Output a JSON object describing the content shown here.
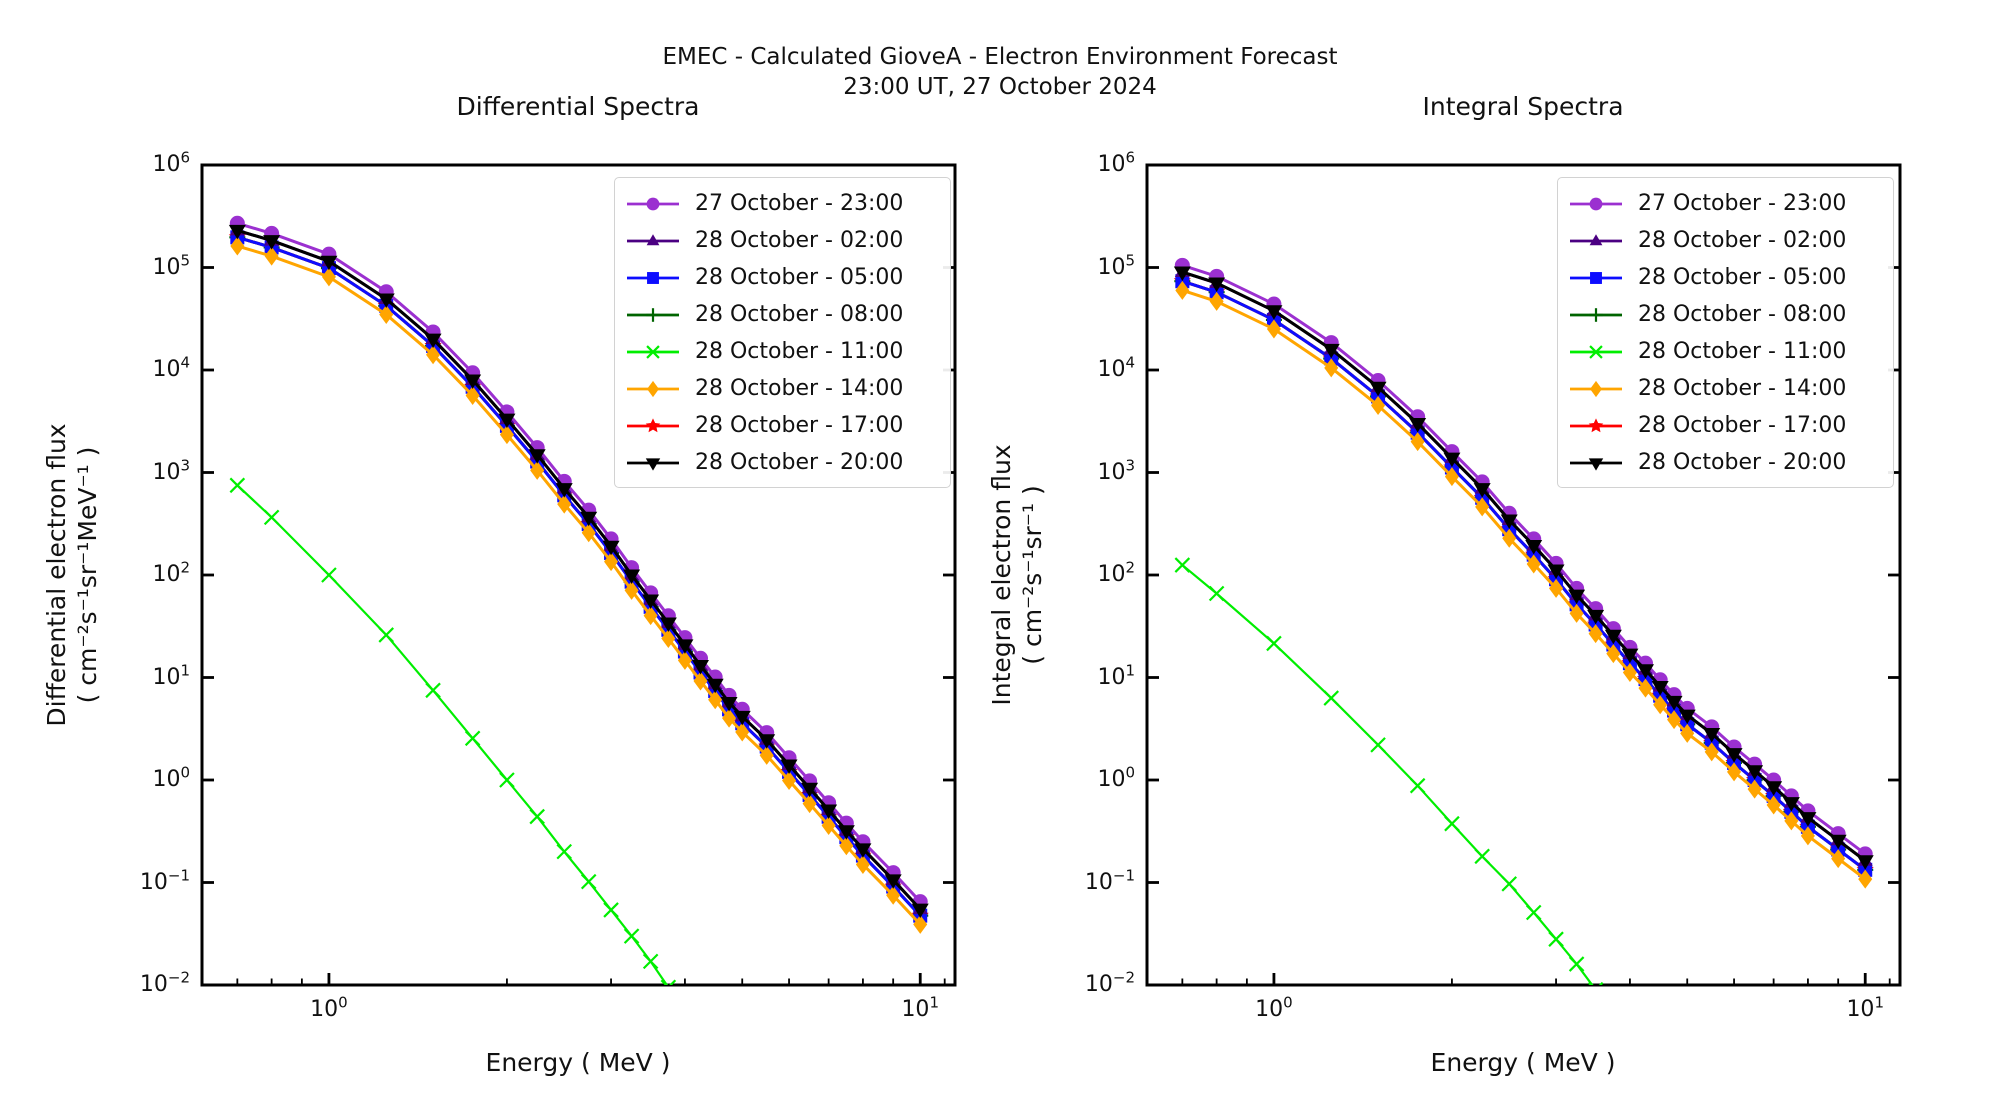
{
  "figure": {
    "title_line1": "EMEC - Calculated GioveA - Electron Environment Forecast",
    "title_line2": "23:00 UT, 27 October 2024",
    "background": "#ffffff"
  },
  "axes": {
    "x_label": "Energy ( MeV )",
    "x_major_exponents": [
      0,
      1
    ],
    "x_minor_values": [
      0.7,
      0.8,
      0.9,
      2,
      3,
      4,
      5,
      6,
      7,
      8,
      9,
      11
    ],
    "y_tick_exponents": [
      6,
      5,
      4,
      3,
      2,
      1,
      0,
      -1,
      -2
    ],
    "grid": "off",
    "legend_position": "upper right"
  },
  "panels": [
    {
      "title": "Differential Spectra",
      "y_label_line1": "Differential electron flux",
      "y_label_line2": "( cm⁻²s⁻¹sr⁻¹MeV⁻¹ )"
    },
    {
      "title": "Integral Spectra",
      "y_label_line1": "Integral electron flux",
      "y_label_line2": "( cm⁻²s⁻¹sr⁻¹ )"
    }
  ],
  "chart_data": [
    {
      "type": "line",
      "title": "Differential Spectra",
      "xlabel": "Energy ( MeV )",
      "ylabel": "Differential electron flux ( cm⁻²s⁻¹sr⁻¹MeV⁻¹ )",
      "x_scale": "log",
      "y_scale": "log",
      "xlim": [
        0.61,
        11.45
      ],
      "ylim": [
        0.01,
        1000000
      ],
      "x": [
        0.7,
        0.8,
        1,
        1.25,
        1.5,
        1.75,
        2,
        2.25,
        2.5,
        2.75,
        3,
        3.25,
        3.5,
        3.75,
        4,
        4.25,
        4.5,
        4.75,
        5,
        5.5,
        6,
        6.5,
        7,
        7.5,
        8,
        9,
        10
      ],
      "series": [
        {
          "name": "27 October - 23:00",
          "color": "#9B30D0",
          "marker": "circle",
          "z": 6,
          "values": [
            270000,
            215000,
            135000,
            58000,
            23500,
            9400,
            3900,
            1750,
            820,
            430,
            225,
            118,
            67,
            40,
            24.5,
            15.4,
            10.1,
            6.7,
            4.9,
            2.9,
            1.65,
            0.98,
            0.6,
            0.38,
            0.25,
            0.125,
            0.065
          ]
        },
        {
          "name": "28 October - 02:00",
          "color": "#4B0082",
          "marker": "triangle-up",
          "z": 3,
          "values": [
            230000,
            183000,
            115000,
            49300,
            20000,
            7990,
            3320,
            1490,
            697,
            366,
            191,
            100,
            57,
            34,
            20.8,
            13.1,
            8.6,
            5.7,
            4.17,
            2.47,
            1.4,
            0.83,
            0.51,
            0.32,
            0.213,
            0.106,
            0.055
          ]
        },
        {
          "name": "28 October - 05:00",
          "color": "#0D0DFF",
          "marker": "square",
          "z": 2,
          "values": [
            197000,
            157000,
            98600,
            42300,
            17200,
            6860,
            2850,
            1280,
            599,
            314,
            164,
            86.1,
            48.9,
            29.2,
            17.9,
            11.2,
            7.37,
            4.89,
            3.58,
            2.12,
            1.2,
            0.715,
            0.438,
            0.277,
            0.183,
            0.0913,
            0.0475
          ]
        },
        {
          "name": "28 October - 08:00",
          "color": "#006400",
          "marker": "plus",
          "z": 0,
          "values": [
            197000,
            157000,
            98600,
            42300,
            17200,
            6860,
            2850,
            1280,
            599,
            314,
            164,
            86.1,
            48.9,
            29.2,
            17.9,
            11.2,
            7.37,
            4.89,
            3.58,
            2.12,
            1.2,
            0.715,
            0.438,
            0.277,
            0.183,
            0.0913,
            0.0475
          ]
        },
        {
          "name": "28 October - 11:00",
          "color": "#00EE00",
          "marker": "x",
          "z": 5,
          "x": [
            0.7,
            0.8,
            1,
            1.25,
            1.5,
            1.75,
            2,
            2.25,
            2.5,
            2.75,
            3,
            3.25,
            3.5,
            3.75
          ],
          "values": [
            750,
            365,
            100,
            26,
            7.5,
            2.55,
            1.0,
            0.44,
            0.2,
            0.102,
            0.054,
            0.03,
            0.017,
            0.0095
          ]
        },
        {
          "name": "28 October - 14:00",
          "color": "#FFA500",
          "marker": "diamond",
          "z": 4,
          "values": [
            162000,
            129000,
            81000,
            34800,
            14100,
            5640,
            2340,
            1050,
            492,
            258,
            135,
            70.8,
            40.2,
            24,
            14.7,
            9.24,
            6.06,
            4.02,
            2.94,
            1.74,
            0.99,
            0.588,
            0.36,
            0.228,
            0.15,
            0.075,
            0.039
          ]
        },
        {
          "name": "28 October - 17:00",
          "color": "#FF0000",
          "marker": "star",
          "z": 1,
          "values": [
            197000,
            157000,
            98600,
            42300,
            17200,
            6860,
            2850,
            1280,
            599,
            314,
            164,
            86.1,
            48.9,
            29.2,
            17.9,
            11.2,
            7.37,
            4.89,
            3.58,
            2.12,
            1.2,
            0.715,
            0.438,
            0.277,
            0.183,
            0.0913,
            0.0475
          ]
        },
        {
          "name": "28 October - 20:00",
          "color": "#000000",
          "marker": "triangle-down",
          "z": 7,
          "values": [
            230000,
            183000,
            115000,
            49300,
            20000,
            7990,
            3320,
            1490,
            697,
            366,
            191,
            100,
            57,
            34,
            20.8,
            13.1,
            8.6,
            5.7,
            4.17,
            2.47,
            1.4,
            0.83,
            0.51,
            0.32,
            0.213,
            0.106,
            0.055
          ]
        }
      ]
    },
    {
      "type": "line",
      "title": "Integral Spectra",
      "xlabel": "Energy ( MeV )",
      "ylabel": "Integral electron flux ( cm⁻²s⁻¹sr⁻¹ )",
      "x_scale": "log",
      "y_scale": "log",
      "xlim": [
        0.61,
        11.45
      ],
      "ylim": [
        0.01,
        1000000
      ],
      "x": [
        0.7,
        0.8,
        1,
        1.25,
        1.5,
        1.75,
        2,
        2.25,
        2.5,
        2.75,
        3,
        3.25,
        3.5,
        3.75,
        4,
        4.25,
        4.5,
        4.75,
        5,
        5.5,
        6,
        6.5,
        7,
        7.5,
        8,
        9,
        10
      ],
      "series": [
        {
          "name": "27 October - 23:00",
          "color": "#9B30D0",
          "marker": "circle",
          "z": 6,
          "values": [
            105000,
            82000,
            44000,
            18500,
            7900,
            3500,
            1600,
            810,
            400,
            225,
            130,
            74,
            47,
            30,
            19.7,
            13.8,
            9.5,
            6.8,
            5.0,
            3.3,
            2.1,
            1.43,
            1.0,
            0.7,
            0.5,
            0.3,
            0.19
          ]
        },
        {
          "name": "28 October - 02:00",
          "color": "#4B0082",
          "marker": "triangle-up",
          "z": 3,
          "values": [
            90300,
            70500,
            37800,
            15900,
            6790,
            3010,
            1380,
            697,
            344,
            194,
            112,
            63.6,
            40.4,
            25.8,
            16.9,
            11.9,
            8.17,
            5.85,
            4.3,
            2.84,
            1.81,
            1.23,
            0.86,
            0.602,
            0.43,
            0.258,
            0.163
          ]
        },
        {
          "name": "28 October - 05:00",
          "color": "#0D0DFF",
          "marker": "square",
          "z": 2,
          "values": [
            73500,
            57400,
            30800,
            12950,
            5530,
            2450,
            1120,
            567,
            280,
            158,
            91,
            51.8,
            32.9,
            21,
            13.8,
            9.66,
            6.65,
            4.76,
            3.5,
            2.31,
            1.47,
            1.0,
            0.7,
            0.49,
            0.35,
            0.21,
            0.133
          ]
        },
        {
          "name": "28 October - 08:00",
          "color": "#006400",
          "marker": "plus",
          "z": 0,
          "values": [
            73500,
            57400,
            30800,
            12950,
            5530,
            2450,
            1120,
            567,
            280,
            158,
            91,
            51.8,
            32.9,
            21,
            13.8,
            9.66,
            6.65,
            4.76,
            3.5,
            2.31,
            1.47,
            1.0,
            0.7,
            0.49,
            0.35,
            0.21,
            0.133
          ]
        },
        {
          "name": "28 October - 11:00",
          "color": "#00EE00",
          "marker": "x",
          "z": 5,
          "x": [
            0.7,
            0.8,
            1,
            1.25,
            1.5,
            1.75,
            2,
            2.25,
            2.5,
            2.75,
            3,
            3.25,
            3.5
          ],
          "values": [
            125,
            66,
            21.5,
            6.3,
            2.2,
            0.88,
            0.375,
            0.18,
            0.097,
            0.051,
            0.028,
            0.016,
            0.009
          ]
        },
        {
          "name": "28 October - 14:00",
          "color": "#FFA500",
          "marker": "diamond",
          "z": 4,
          "values": [
            59900,
            46700,
            25100,
            10500,
            4500,
            2000,
            912,
            462,
            228,
            128,
            74.1,
            42.2,
            26.8,
            17.1,
            11.2,
            7.87,
            5.42,
            3.88,
            2.85,
            1.88,
            1.2,
            0.815,
            0.57,
            0.399,
            0.285,
            0.171,
            0.108
          ]
        },
        {
          "name": "28 October - 17:00",
          "color": "#FF0000",
          "marker": "star",
          "z": 1,
          "values": [
            73500,
            57400,
            30800,
            12950,
            5530,
            2450,
            1120,
            567,
            280,
            158,
            91,
            51.8,
            32.9,
            21,
            13.8,
            9.66,
            6.65,
            4.76,
            3.5,
            2.31,
            1.47,
            1.0,
            0.7,
            0.49,
            0.35,
            0.21,
            0.133
          ]
        },
        {
          "name": "28 October - 20:00",
          "color": "#000000",
          "marker": "triangle-down",
          "z": 7,
          "values": [
            90300,
            70500,
            37800,
            15900,
            6790,
            3010,
            1380,
            697,
            344,
            194,
            112,
            63.6,
            40.4,
            25.8,
            16.9,
            11.9,
            8.17,
            5.85,
            4.3,
            2.84,
            1.81,
            1.23,
            0.86,
            0.602,
            0.43,
            0.258,
            0.163
          ]
        }
      ]
    }
  ]
}
